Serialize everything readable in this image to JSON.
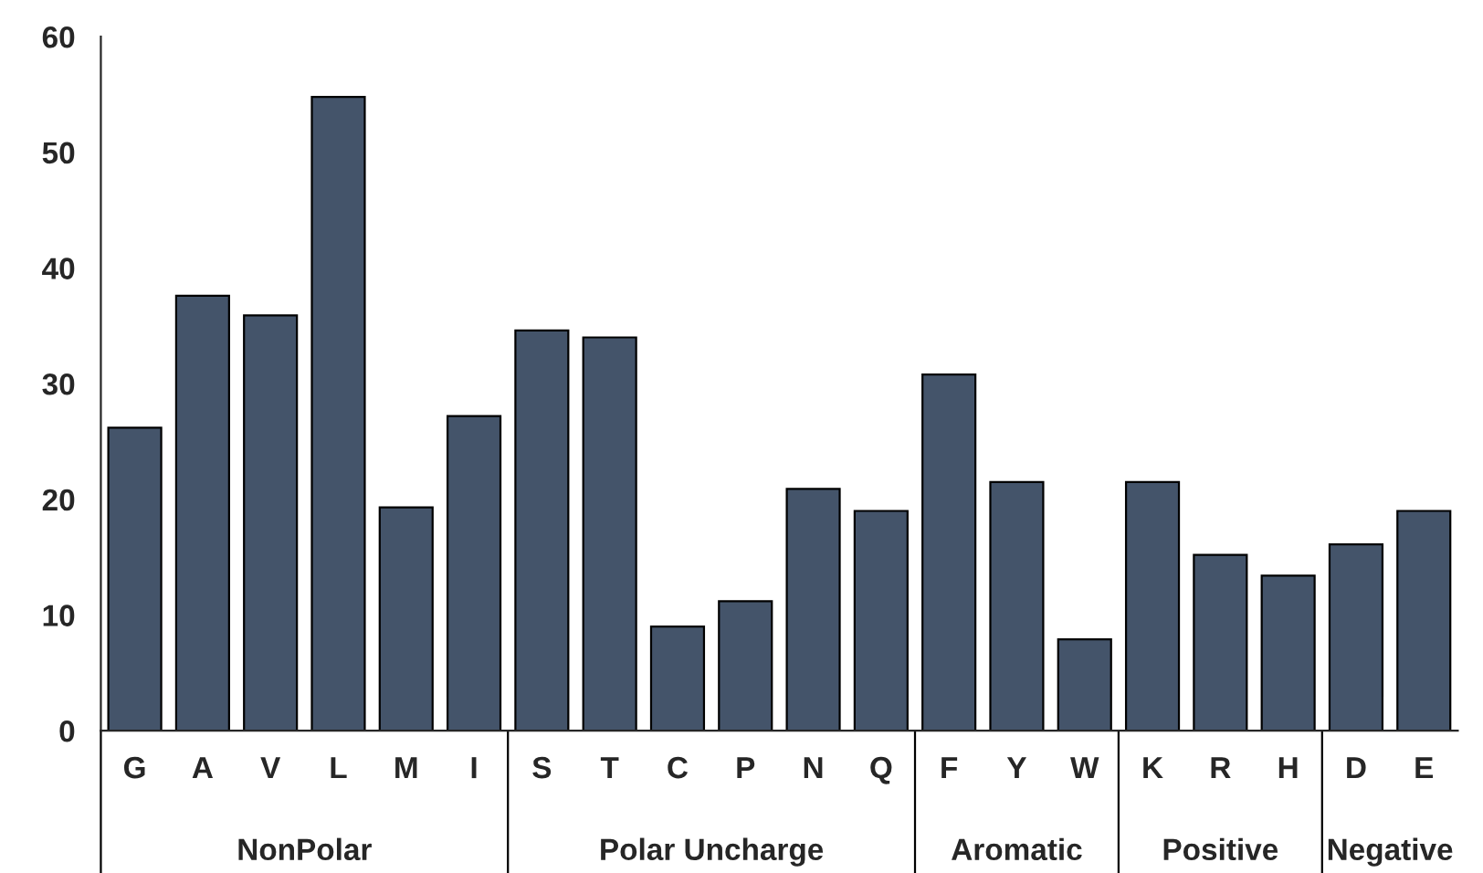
{
  "chart_data": {
    "type": "bar",
    "categories": [
      "G",
      "A",
      "V",
      "L",
      "M",
      "I",
      "S",
      "T",
      "C",
      "P",
      "N",
      "Q",
      "F",
      "Y",
      "W",
      "K",
      "R",
      "H",
      "D",
      "E"
    ],
    "series": [
      {
        "color": "#44546a",
        "values": [
          26.2,
          37.6,
          35.9,
          54.8,
          19.3,
          27.2,
          null,
          null,
          null,
          null,
          null,
          null,
          null,
          null,
          null,
          null,
          null,
          null,
          null,
          null
        ]
      },
      {
        "color": "#44546a",
        "values": [
          null,
          null,
          null,
          null,
          null,
          null,
          34.6,
          34.0,
          9.0,
          11.2,
          20.9,
          19.0,
          null,
          null,
          null,
          null,
          null,
          null,
          null,
          null
        ]
      },
      {
        "color": "#44546a",
        "values": [
          null,
          null,
          null,
          null,
          null,
          null,
          null,
          null,
          null,
          null,
          null,
          null,
          30.8,
          21.5,
          7.9,
          null,
          null,
          null,
          null,
          null
        ]
      },
      {
        "color": "#44546a",
        "values": [
          null,
          null,
          null,
          null,
          null,
          null,
          null,
          null,
          null,
          null,
          null,
          null,
          null,
          null,
          null,
          21.5,
          15.2,
          13.4,
          null,
          null
        ]
      },
      {
        "color": "#44546a",
        "values": [
          null,
          null,
          null,
          null,
          null,
          null,
          null,
          null,
          null,
          null,
          null,
          null,
          null,
          null,
          null,
          null,
          null,
          null,
          16.1,
          19.0
        ]
      }
    ],
    "ylim": [
      0,
      60
    ],
    "yticks": [
      0,
      10,
      20,
      30,
      40,
      50,
      60
    ],
    "grid": false,
    "annotations": [
      "NonPolar",
      "Polar Uncharge",
      "Aromatic",
      "Positive",
      "Negative"
    ]
  }
}
